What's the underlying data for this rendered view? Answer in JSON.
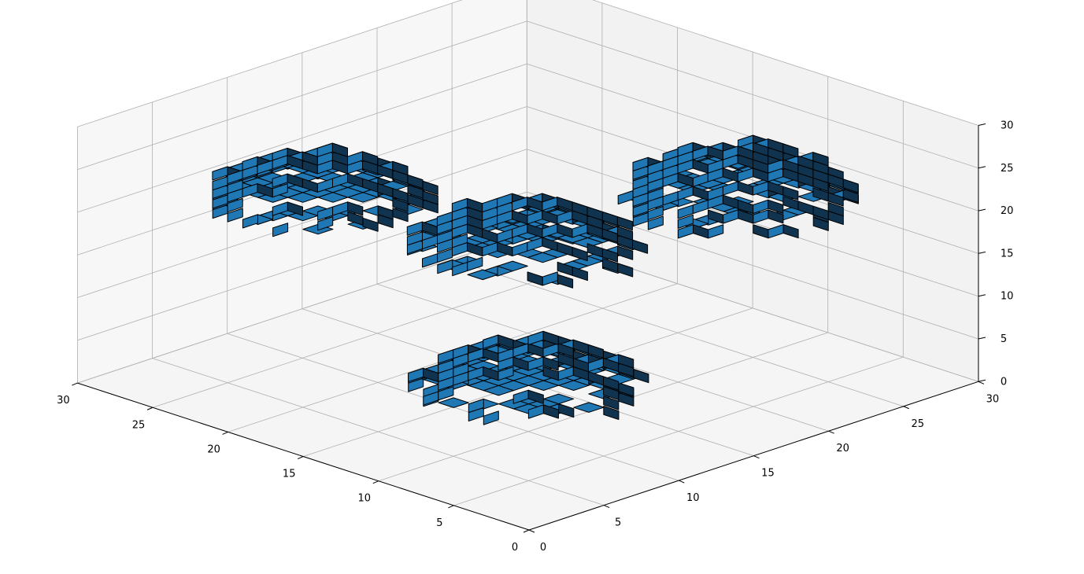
{
  "chart_data": {
    "type": "voxel",
    "title": "",
    "xlabel": "",
    "ylabel": "",
    "zlabel": "",
    "xlim": [
      0,
      30
    ],
    "ylim": [
      0,
      30
    ],
    "zlim": [
      0,
      30
    ],
    "x_ticks": [
      "0",
      "5",
      "10",
      "15",
      "20",
      "25",
      "30"
    ],
    "y_ticks": [
      "0",
      "5",
      "10",
      "15",
      "20",
      "25",
      "30"
    ],
    "z_ticks": [
      "0",
      "5",
      "10",
      "15",
      "20",
      "25",
      "30"
    ],
    "grid": true,
    "view": {
      "elev": 30,
      "azim": -45
    },
    "colors": {
      "voxel_top": "#1f77b4",
      "voxel_side": "#1a5d8e",
      "voxel_dark": "#10344f",
      "voxel_edge": "#000000",
      "pane_left": "#f7f7f7",
      "pane_right": "#f2f2f2",
      "pane_floor": "#f5f5f5",
      "grid": "#b0b0b0"
    },
    "blobs": [
      {
        "name": "",
        "center": [
          8,
          8,
          8
        ],
        "size": [
          10,
          10,
          5
        ]
      },
      {
        "name": "",
        "center": [
          22,
          8,
          22
        ],
        "size": [
          10,
          10,
          5
        ]
      },
      {
        "name": "",
        "center": [
          8,
          22,
          22
        ],
        "size": [
          10,
          10,
          8
        ]
      },
      {
        "name": "",
        "center": [
          22,
          22,
          8
        ],
        "size": [
          10,
          10,
          6
        ]
      }
    ]
  }
}
